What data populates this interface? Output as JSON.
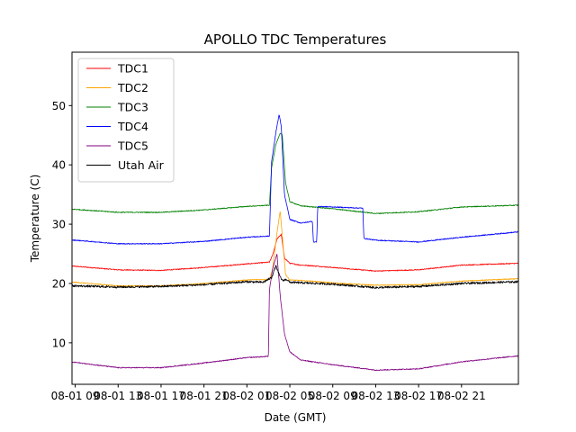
{
  "chart_data": {
    "type": "line",
    "title": "APOLLO TDC Temperatures",
    "xlabel": "Date (GMT)",
    "ylabel": "Temperature (C)",
    "x_unit": "hours since 08-01 09:00 GMT",
    "xlim": [
      -0.3,
      41.3
    ],
    "ylim": [
      3,
      59
    ],
    "y_ticks": [
      10,
      20,
      30,
      40,
      50
    ],
    "x_ticks": [
      {
        "x": 0,
        "label": "08-01 09"
      },
      {
        "x": 4,
        "label": "08-01 13"
      },
      {
        "x": 8,
        "label": "08-01 17"
      },
      {
        "x": 12,
        "label": "08-01 21"
      },
      {
        "x": 16,
        "label": "08-02 01"
      },
      {
        "x": 20,
        "label": "08-02 05"
      },
      {
        "x": 24,
        "label": "08-02 09"
      },
      {
        "x": 28,
        "label": "08-02 13"
      },
      {
        "x": 32,
        "label": "08-02 17"
      },
      {
        "x": 36,
        "label": "08-02 21"
      }
    ],
    "legend_position": "top-left",
    "series": [
      {
        "name": "TDC1",
        "color": "#ff0000",
        "x": [
          0,
          4,
          8,
          12,
          16,
          18.1,
          18.4,
          18.8,
          19.2,
          19.5,
          20,
          21,
          22,
          24,
          28,
          32,
          36,
          41.3
        ],
        "y": [
          22.9,
          22.3,
          22.2,
          22.7,
          23.3,
          23.6,
          24.8,
          27.5,
          28.3,
          24.3,
          23.4,
          23.1,
          23.0,
          22.7,
          22.1,
          22.3,
          23.1,
          23.4
        ]
      },
      {
        "name": "TDC2",
        "color": "#ffa500",
        "x": [
          0,
          4,
          8,
          12,
          16,
          18.1,
          18.4,
          18.8,
          19.1,
          19.3,
          19.6,
          20,
          22,
          24,
          28,
          32,
          36,
          41.3
        ],
        "y": [
          20.2,
          19.6,
          19.6,
          20.0,
          20.6,
          20.7,
          22.5,
          28.5,
          32.2,
          28.0,
          21.5,
          20.6,
          20.4,
          20.1,
          19.7,
          19.8,
          20.4,
          20.8
        ]
      },
      {
        "name": "TDC3",
        "color": "#008000",
        "x": [
          0,
          4,
          8,
          12,
          16,
          18.1,
          18.3,
          18.7,
          19.1,
          19.3,
          19.6,
          20,
          21,
          24,
          28,
          32,
          36,
          41.3
        ],
        "y": [
          32.5,
          32.0,
          32.0,
          32.4,
          33.0,
          33.2,
          39.5,
          43.5,
          45.3,
          45.0,
          37.0,
          33.8,
          33.1,
          32.6,
          31.8,
          32.1,
          32.9,
          33.2
        ]
      },
      {
        "name": "TDC4",
        "color": "#0000ff",
        "x": [
          0,
          4,
          8,
          12,
          16,
          18.1,
          18.3,
          18.7,
          19.0,
          19.2,
          19.5,
          20,
          21,
          21.5,
          22.1,
          22.2,
          22.5,
          22.6,
          26.8,
          26.9,
          28,
          32,
          36,
          41.3
        ],
        "y": [
          27.3,
          26.7,
          26.7,
          27.1,
          27.8,
          28.0,
          40.5,
          45.5,
          48.5,
          46.5,
          35.0,
          30.8,
          30.2,
          30.3,
          30.5,
          27.0,
          27.0,
          33.0,
          32.7,
          27.6,
          27.3,
          27.0,
          27.8,
          28.7
        ]
      },
      {
        "name": "TDC5",
        "color": "#800080",
        "x": [
          0,
          4,
          8,
          12,
          16,
          18.0,
          18.1,
          18.4,
          18.8,
          19.1,
          19.5,
          20,
          21,
          24,
          28,
          32,
          36,
          41.3
        ],
        "y": [
          6.7,
          5.8,
          5.8,
          6.6,
          7.5,
          7.7,
          19.0,
          22.5,
          25.0,
          18.0,
          11.5,
          8.5,
          7.1,
          6.3,
          5.4,
          5.6,
          6.8,
          7.8
        ]
      },
      {
        "name": "Utah Air",
        "color": "#000000",
        "x": [
          0,
          4,
          8,
          12,
          16,
          17.5,
          18.3,
          18.7,
          19.0,
          19.3,
          19.7,
          20,
          24,
          28,
          32,
          36,
          41.3
        ],
        "y": [
          19.6,
          19.4,
          19.5,
          19.8,
          20.3,
          20.2,
          21.0,
          23.0,
          21.5,
          20.5,
          20.7,
          20.2,
          19.9,
          19.3,
          19.5,
          20.0,
          20.3
        ]
      }
    ]
  }
}
